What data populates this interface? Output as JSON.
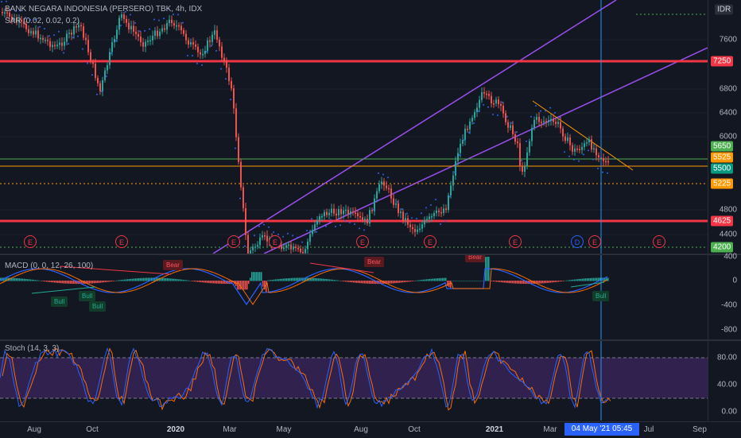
{
  "chart": {
    "title": "BANK NEGARA INDONESIA (PERSERO) TBK, 4h, IDX",
    "sar_label": "SAR (0.02, 0.02, 0.2)",
    "currency": "IDR"
  },
  "main_axis": {
    "ticks": [
      "7600",
      "7200",
      "6800",
      "6400",
      "6000",
      "5600",
      "4800",
      "4400"
    ]
  },
  "price_badges": [
    {
      "label": "7250",
      "color": "#f23645"
    },
    {
      "label": "5650",
      "color": "#4caf50"
    },
    {
      "label": "5525",
      "color": "#ff9800"
    },
    {
      "label": "5500",
      "color": "#089981"
    },
    {
      "label": "5225",
      "color": "#ff9800"
    },
    {
      "label": "4625",
      "color": "#f23645"
    },
    {
      "label": "4200",
      "color": "#4caf50"
    }
  ],
  "events": {
    "earnings": "E",
    "dividend": "D"
  },
  "macd": {
    "label": "MACD (0, 0, 12, 26, 100)",
    "ticks": [
      "400",
      "0",
      "-400",
      "-800"
    ],
    "signals": {
      "bear": "Bear",
      "bull": "Bull"
    }
  },
  "stoch": {
    "label": "Stoch (14, 3, 3)",
    "ticks": [
      "80.00",
      "40.00",
      "0.00"
    ]
  },
  "time_axis": {
    "labels": [
      "Aug",
      "Oct",
      "2020",
      "Mar",
      "May",
      "Aug",
      "Oct",
      "2021",
      "Mar",
      "Jul",
      "Sep"
    ],
    "cursor": "04 May '21   05:45"
  },
  "colors": {
    "background": "#131722",
    "up": "#26a69a",
    "down": "#ef5350",
    "resistance": "#f23645",
    "channel": "#9c4ff0",
    "sar": "#2962ff",
    "macd_line": "#2962ff",
    "signal_line": "#ff6d00",
    "stoch_band": "#4b2a74"
  }
}
